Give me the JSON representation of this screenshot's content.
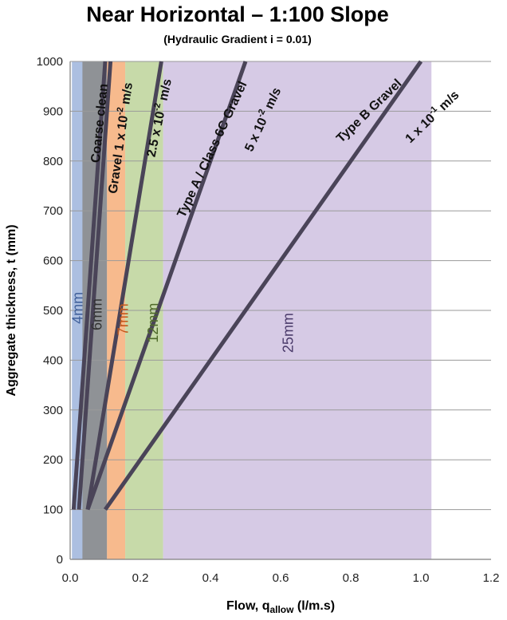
{
  "chart_data": {
    "type": "line",
    "title": "Near Horizontal – 1:100 Slope",
    "subtitle": "(Hydraulic Gradient i = 0.01)",
    "xlabel": {
      "main": "Flow, q",
      "sub": "allow",
      "unit": " (l/m.s)"
    },
    "ylabel": "Aggregate thickness, t (mm)",
    "xlim": [
      0,
      1.2
    ],
    "ylim": [
      0,
      1000
    ],
    "xticks": [
      "0.0",
      "0.2",
      "0.4",
      "0.6",
      "0.8",
      "1.0",
      "1.2"
    ],
    "yticks": [
      "0",
      "100",
      "200",
      "300",
      "400",
      "500",
      "600",
      "700",
      "800",
      "900",
      "1000"
    ],
    "grid": "horizontal",
    "colors": {
      "line": "#4a4458",
      "grid": "#9a9a9a",
      "axis": "#7f7f7f"
    },
    "bands": [
      {
        "label": "4mm",
        "x0": 0.005,
        "x1": 0.105,
        "color": "#9db4dc",
        "text_color": "#3f5f9a"
      },
      {
        "label": "6mm",
        "x0": 0.035,
        "x1": 0.105,
        "color": "#8a8a88",
        "text_color": "#333333"
      },
      {
        "label": "7mm",
        "x0": 0.105,
        "x1": 0.157,
        "color": "#f6ae79",
        "text_color": "#c4581a"
      },
      {
        "label": "12mm",
        "x0": 0.157,
        "x1": 0.265,
        "color": "#bdd49a",
        "text_color": "#4f6a2a"
      },
      {
        "label": "25mm",
        "x0": 0.265,
        "x1": 1.03,
        "color": "#cfc1e0",
        "text_color": "#4a3a6a"
      }
    ],
    "series": [
      {
        "name": "Coarse clean",
        "points": [
          [
            0.01,
            100
          ],
          [
            0.1,
            1000
          ]
        ]
      },
      {
        "name": "Gravel 1 x 10⁻² m/s",
        "points": [
          [
            0.025,
            100
          ],
          [
            0.115,
            1000
          ]
        ]
      },
      {
        "name": "2.5 x 10⁻² m/s",
        "points": [
          [
            0.05,
            100
          ],
          [
            0.26,
            1000
          ]
        ]
      },
      {
        "name": "Type A / Class 6C Gravel 5 x 10⁻² m/s",
        "points": [
          [
            0.05,
            100
          ],
          [
            0.5,
            1000
          ]
        ]
      },
      {
        "name": "Type B Gravel 1 x 10⁻¹ m/s",
        "points": [
          [
            0.1,
            100
          ],
          [
            1.0,
            1000
          ]
        ]
      }
    ],
    "annotations": [
      {
        "parts": [
          {
            "t": "Coarse clean"
          }
        ],
        "x": 0.095,
        "y": 875,
        "angle": -84
      },
      {
        "parts": [
          {
            "t": "Gravel 1 x 10"
          },
          {
            "t": "-2",
            "sup": true
          },
          {
            "t": "  m/s"
          }
        ],
        "x": 0.155,
        "y": 845,
        "angle": -82
      },
      {
        "parts": [
          {
            "t": "2.5 x 10"
          },
          {
            "t": "-2",
            "sup": true
          },
          {
            "t": "  m/s"
          }
        ],
        "x": 0.265,
        "y": 885,
        "angle": -78
      },
      {
        "parts": [
          {
            "t": "Type A / Class 6C Gravel"
          }
        ],
        "x": 0.415,
        "y": 820,
        "angle": -65
      },
      {
        "parts": [
          {
            "t": "5 x 10"
          },
          {
            "t": "-2",
            "sup": true
          },
          {
            "t": "  m/s"
          }
        ],
        "x": 0.56,
        "y": 880,
        "angle": -65
      },
      {
        "parts": [
          {
            "t": "Type B Gravel"
          }
        ],
        "x": 0.86,
        "y": 895,
        "angle": -44
      },
      {
        "parts": [
          {
            "t": "1 x 10"
          },
          {
            "t": "-1",
            "sup": true
          },
          {
            "t": "  m/s"
          }
        ],
        "x": 1.04,
        "y": 883,
        "angle": -44
      }
    ],
    "band_label_positions": [
      {
        "label": "4mm",
        "x": 0.035,
        "y": 505
      },
      {
        "label": "6mm",
        "x": 0.09,
        "y": 492
      },
      {
        "label": "7mm",
        "x": 0.165,
        "y": 482
      },
      {
        "label": "12mm",
        "x": 0.25,
        "y": 475
      },
      {
        "label": "25mm",
        "x": 0.635,
        "y": 455
      }
    ]
  }
}
